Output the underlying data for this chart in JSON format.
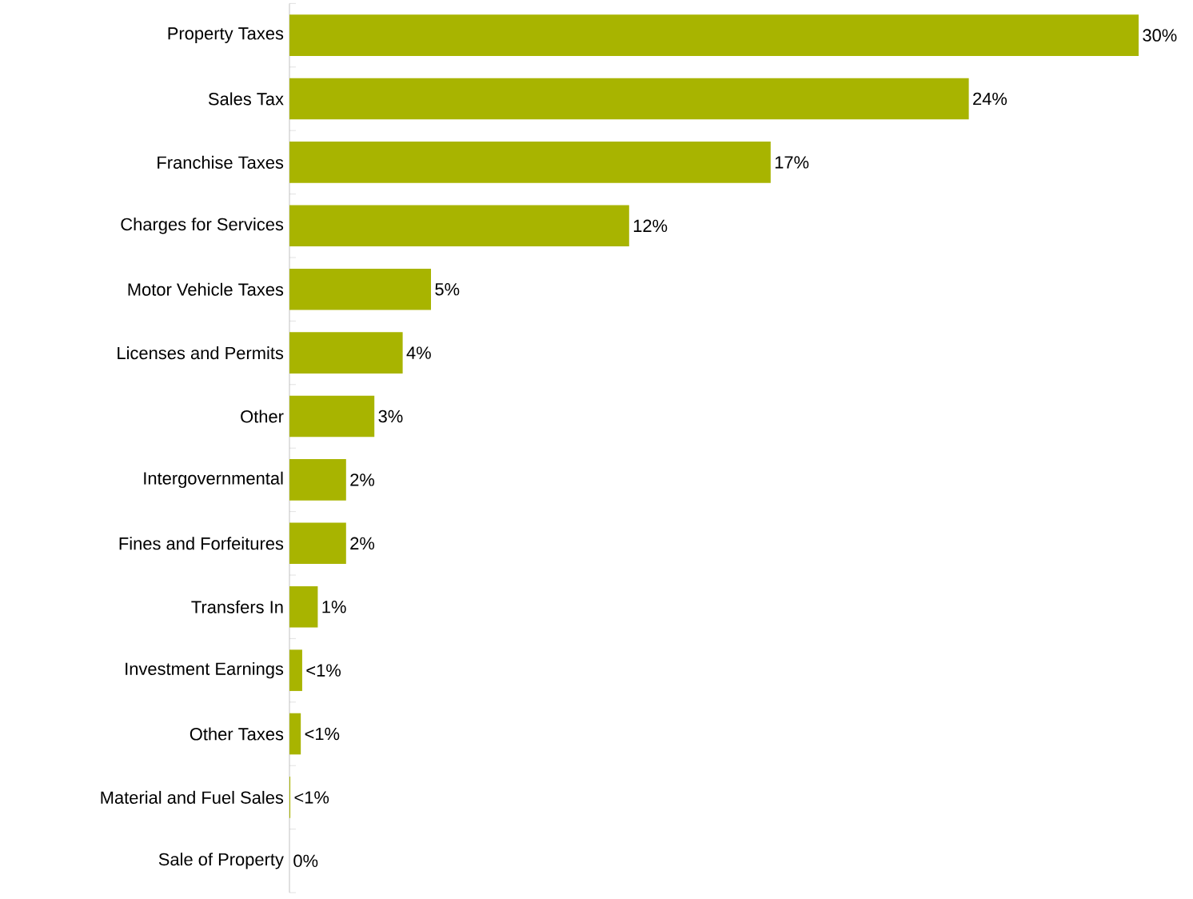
{
  "chart_data": {
    "type": "bar",
    "orientation": "horizontal",
    "categories": [
      "Property Taxes",
      "Sales Tax",
      "Franchise Taxes",
      "Charges for Services",
      "Motor Vehicle Taxes",
      "Licenses and Permits",
      "Other",
      "Intergovernmental",
      "Fines and Forfeitures",
      "Transfers In",
      "Investment Earnings",
      "Other Taxes",
      "Material and Fuel Sales",
      "Sale of Property"
    ],
    "values": [
      30,
      24,
      17,
      12,
      5,
      4,
      3,
      2,
      2,
      1,
      0.45,
      0.4,
      0.03,
      0
    ],
    "value_labels": [
      "30%",
      "24%",
      "17%",
      "12%",
      "5%",
      "4%",
      "3%",
      "2%",
      "2%",
      "1%",
      "<1%",
      "<1%",
      "<1%",
      "0%"
    ],
    "color": "#a8b400",
    "xlim": [
      0,
      30
    ]
  }
}
